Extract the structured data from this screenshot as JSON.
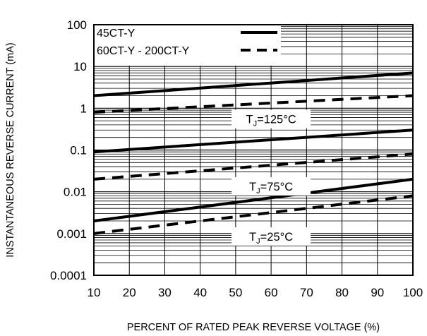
{
  "chart_data": {
    "type": "line",
    "xlabel": "PERCENT OF RATED PEAK REVERSE VOLTAGE (%)",
    "ylabel": "INSTANTANEOUS REVERSE CURRENT (mA)",
    "xlim": [
      10,
      100
    ],
    "ylim": [
      0.0001,
      100
    ],
    "yscale": "log",
    "grid": true,
    "x_ticks": [
      "10",
      "20",
      "30",
      "40",
      "50",
      "60",
      "70",
      "80",
      "90",
      "100"
    ],
    "y_ticks": [
      "100",
      "10",
      "1",
      "0.1",
      "0.01",
      "0.001",
      "0.0001"
    ],
    "legend": {
      "placement": "top-left",
      "entries": [
        {
          "label": "45CT-Y",
          "style": "solid"
        },
        {
          "label": "60CT-Y - 200CT-Y",
          "style": "dashed"
        }
      ]
    },
    "series": [
      {
        "name": "45CT-Y",
        "style": "solid",
        "x": [
          10,
          100
        ],
        "values": [
          2,
          7
        ],
        "annotation": "TJ=125°C"
      },
      {
        "name": "60CT-Y - 200CT-Y",
        "style": "dashed",
        "x": [
          10,
          100
        ],
        "values": [
          0.8,
          2
        ],
        "annotation": "TJ=125°C"
      },
      {
        "name": "45CT-Y",
        "style": "solid",
        "x": [
          10,
          100
        ],
        "values": [
          0.09,
          0.3
        ],
        "annotation": "TJ=75°C"
      },
      {
        "name": "60CT-Y - 200CT-Y",
        "style": "dashed",
        "x": [
          10,
          100
        ],
        "values": [
          0.02,
          0.08
        ],
        "annotation": "TJ=75°C"
      },
      {
        "name": "45CT-Y",
        "style": "solid",
        "x": [
          10,
          100
        ],
        "values": [
          0.002,
          0.02
        ],
        "annotation": "TJ=25°C"
      },
      {
        "name": "60CT-Y - 200CT-Y",
        "style": "dashed",
        "x": [
          10,
          100
        ],
        "values": [
          0.001,
          0.008
        ],
        "annotation": "TJ=25°C"
      }
    ],
    "annotations": [
      {
        "base": "T",
        "sub": "J",
        "suffix": "=125°C",
        "x": 60,
        "y": 0.55
      },
      {
        "base": "T",
        "sub": "J",
        "suffix": "=75°C",
        "x": 60,
        "y": 0.0135
      },
      {
        "base": "T",
        "sub": "J",
        "suffix": "=25°C",
        "x": 60,
        "y": 0.00085
      }
    ]
  }
}
